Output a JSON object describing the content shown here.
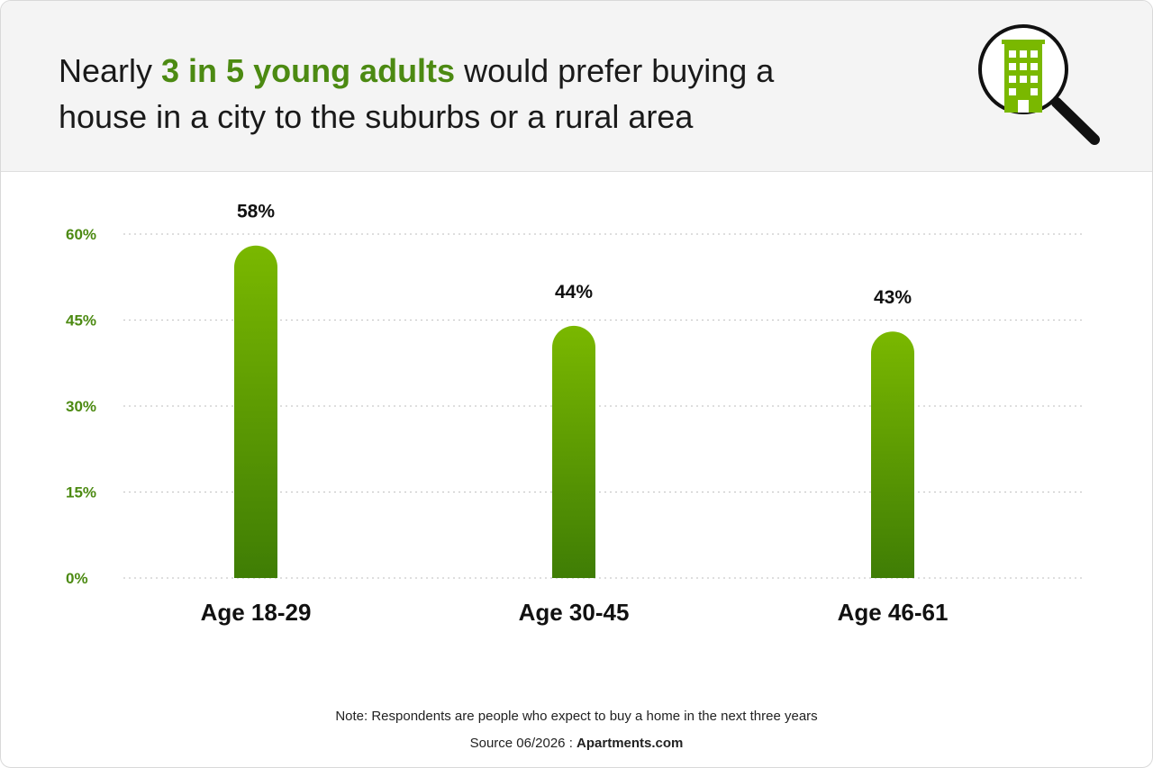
{
  "header": {
    "title_prefix": "Nearly ",
    "title_highlight": "3 in 5 young adults",
    "title_suffix": " would prefer buying a house in a city to the suburbs or a rural area",
    "icon": "building-magnifier-icon"
  },
  "colors": {
    "accent": "#4c8a12",
    "bar_top": "#7ab800",
    "bar_bottom": "#3f7d05",
    "header_bg": "#f4f4f4"
  },
  "chart_data": {
    "type": "bar",
    "categories": [
      "Age 18-29",
      "Age 30-45",
      "Age 46-61"
    ],
    "values": [
      58,
      44,
      43
    ],
    "value_labels": [
      "58%",
      "44%",
      "43%"
    ],
    "yticks": [
      "0%",
      "15%",
      "30%",
      "45%",
      "60%"
    ],
    "ytick_values": [
      0,
      15,
      30,
      45,
      60
    ],
    "ylim": [
      0,
      60
    ],
    "grid": true,
    "title": "Nearly 3 in 5 young adults would prefer buying a house in a city to the suburbs or a rural area",
    "xlabel": "",
    "ylabel": ""
  },
  "footer": {
    "note": "Note: Respondents are people who expect to buy a home in the next three years",
    "source_prefix": "Source 06/2026 : ",
    "source_name": "Apartments.com"
  }
}
